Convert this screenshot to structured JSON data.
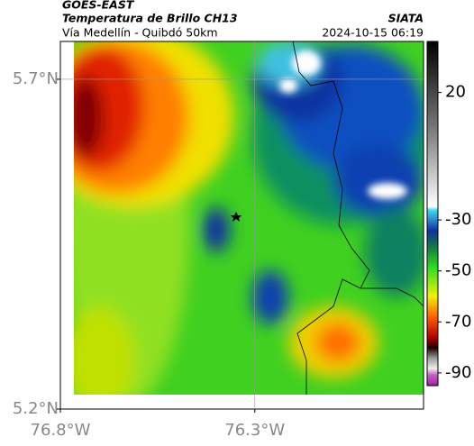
{
  "header": {
    "source": "GOES-EAST",
    "product": "Temperatura de Brillo CH13",
    "route": "Vía Medellín - Quibdó 50km",
    "agency": "SIATA",
    "timestamp": "2024-10-15 06:19"
  },
  "map": {
    "latlim": [
      5.2,
      5.7573
    ],
    "lonlim": [
      -76.8,
      -75.866
    ],
    "lat_ticks": [
      {
        "value": 5.2,
        "label": "5.2°N"
      },
      {
        "value": 5.7,
        "label": "5.7°N"
      }
    ],
    "lon_ticks": [
      {
        "value": -76.8,
        "label": "76.8°W"
      },
      {
        "value": -76.3,
        "label": "76.3°W"
      }
    ]
  },
  "colorbar": {
    "lim": [
      40,
      -95
    ],
    "ticks": [
      20,
      -30,
      -50,
      -70,
      -90
    ]
  }
}
